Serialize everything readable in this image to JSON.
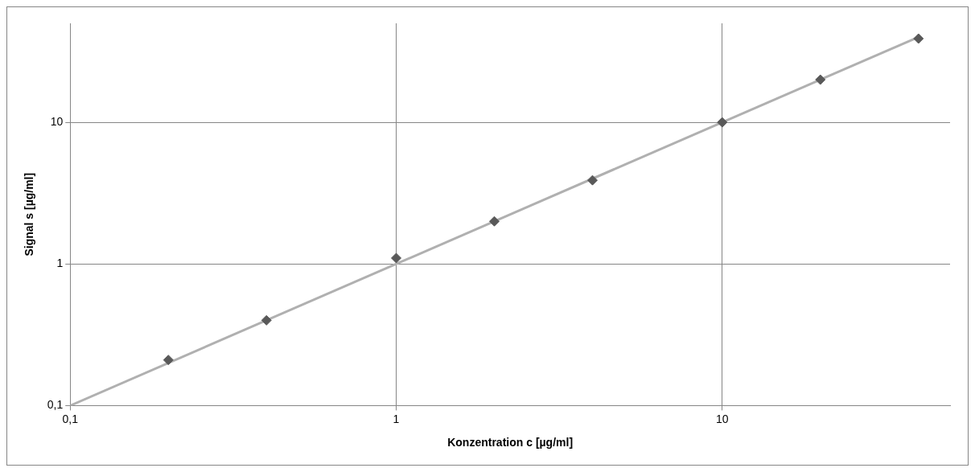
{
  "chart_data": {
    "type": "scatter",
    "xlabel": "Konzentration c [µg/ml]",
    "ylabel": "Signal s [µg/ml]",
    "log": "xy",
    "grid": true,
    "legend": false,
    "marker": "diamond",
    "xlim": [
      0.1,
      50
    ],
    "ylim": [
      0.1,
      50
    ],
    "xticks": [
      {
        "value": 0.1,
        "label": "0,1"
      },
      1,
      10
    ],
    "yticks": [
      {
        "value": 0.1,
        "label": "0,1"
      },
      1,
      10
    ],
    "series": [
      {
        "color": "#595959",
        "x": [
          0.2,
          0.4,
          1,
          2,
          4,
          10,
          20,
          40
        ],
        "values": [
          0.21,
          0.4,
          1.1,
          2,
          3.9,
          10,
          20,
          39
        ]
      },
      {
        "type": "line",
        "color": "#b0b0b0",
        "marker": "none",
        "line_style": "solid",
        "x": [
          0.1,
          40
        ],
        "values": [
          0.1,
          40
        ]
      }
    ]
  }
}
